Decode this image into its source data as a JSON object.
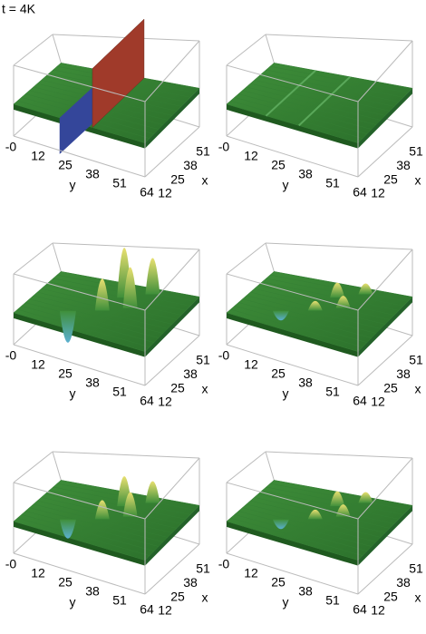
{
  "title": "t = 4K",
  "panels": [
    {
      "yticks": [
        "-0",
        "12",
        "25",
        "38",
        "51",
        "64"
      ],
      "ylabel": "y",
      "xticks": [
        "12",
        "25",
        "38",
        "51"
      ],
      "xlabel": "x"
    },
    {
      "yticks": [
        "-0",
        "12",
        "25",
        "38",
        "51",
        "64"
      ],
      "ylabel": "y",
      "xticks": [
        "12",
        "25",
        "38",
        "51"
      ],
      "xlabel": "x"
    },
    {
      "yticks": [
        "-0",
        "12",
        "25",
        "38",
        "51",
        "64"
      ],
      "ylabel": "y",
      "xticks": [
        "12",
        "25",
        "38",
        "51"
      ],
      "xlabel": "x"
    },
    {
      "yticks": [
        "-0",
        "12",
        "25",
        "38",
        "51",
        "64"
      ],
      "ylabel": "y",
      "xticks": [
        "12",
        "25",
        "38",
        "51"
      ],
      "xlabel": "x"
    },
    {
      "yticks": [
        "-0",
        "12",
        "25",
        "38",
        "51",
        "64"
      ],
      "ylabel": "y",
      "xticks": [
        "12",
        "25",
        "38",
        "51"
      ],
      "xlabel": "x"
    },
    {
      "yticks": [
        "-0",
        "12",
        "25",
        "38",
        "51",
        "64"
      ],
      "ylabel": "y",
      "xticks": [
        "12",
        "25",
        "38",
        "51"
      ],
      "xlabel": "x"
    }
  ]
}
